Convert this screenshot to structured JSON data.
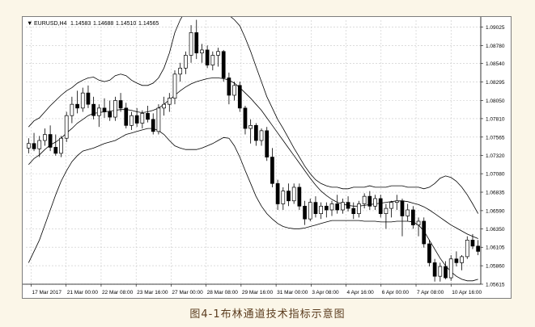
{
  "caption": "图4-1布林通道技术指标示意图",
  "chart_header": {
    "menu_glyph": "▼",
    "symbol": "EURUSD,H4",
    "open": "1.14583",
    "high": "1.14688",
    "low": "1.14510",
    "close": "1.14565"
  },
  "colors": {
    "background": "#ffffff",
    "grid": "#c8c8c8",
    "candle": "#000000",
    "band": "#000000"
  },
  "chart_data": {
    "type": "candlestick",
    "indicator": "Bollinger Bands",
    "grid": true,
    "ylim": [
      1.05615,
      1.09115
    ],
    "y_ticks": [
      "1.09025",
      "1.08780",
      "1.08540",
      "1.08295",
      "1.08050",
      "1.07810",
      "1.07565",
      "1.07320",
      "1.07080",
      "1.06835",
      "1.06590",
      "1.06350",
      "1.06105",
      "1.05860",
      "1.05615"
    ],
    "x_ticks": [
      "17 Mar 2017",
      "21 Mar 00:00",
      "22 Mar 08:00",
      "23 Mar 16:00",
      "27 Mar 00:00",
      "28 Mar 08:00",
      "29 Mar 16:00",
      "31 Mar 00:00",
      "3 Apr 08:00",
      "4 Apr 16:00",
      "6 Apr 00:00",
      "7 Apr 08:00",
      "10 Apr 16:00"
    ],
    "candles": [
      [
        1.0742,
        1.0755,
        1.0735,
        1.0748
      ],
      [
        1.0748,
        1.0762,
        1.0738,
        1.0741
      ],
      [
        1.0741,
        1.0758,
        1.073,
        1.0752
      ],
      [
        1.0752,
        1.0768,
        1.0745,
        1.076
      ],
      [
        1.076,
        1.0772,
        1.0738,
        1.0743
      ],
      [
        1.0743,
        1.076,
        1.0732,
        1.0735
      ],
      [
        1.0735,
        1.0758,
        1.073,
        1.0755
      ],
      [
        1.0755,
        1.079,
        1.075,
        1.0785
      ],
      [
        1.0785,
        1.081,
        1.0775,
        1.08
      ],
      [
        1.08,
        1.0818,
        1.0788,
        1.0795
      ],
      [
        1.0795,
        1.0822,
        1.079,
        1.0815
      ],
      [
        1.0815,
        1.0825,
        1.0795,
        1.08
      ],
      [
        1.08,
        1.081,
        1.078,
        1.0785
      ],
      [
        1.0785,
        1.08,
        1.077,
        1.0795
      ],
      [
        1.0795,
        1.0808,
        1.0782,
        1.079
      ],
      [
        1.079,
        1.0805,
        1.0778,
        1.0783
      ],
      [
        1.0783,
        1.081,
        1.0778,
        1.0805
      ],
      [
        1.0805,
        1.0815,
        1.079,
        1.0795
      ],
      [
        1.0795,
        1.0802,
        1.0768,
        1.0772
      ],
      [
        1.0772,
        1.079,
        1.0766,
        1.0785
      ],
      [
        1.0785,
        1.0795,
        1.077,
        1.0775
      ],
      [
        1.0775,
        1.0792,
        1.0768,
        1.0788
      ],
      [
        1.0788,
        1.0798,
        1.0776,
        1.078
      ],
      [
        1.078,
        1.0788,
        1.076,
        1.0764
      ],
      [
        1.0764,
        1.08,
        1.076,
        1.0795
      ],
      [
        1.0795,
        1.081,
        1.0785,
        1.08
      ],
      [
        1.08,
        1.0815,
        1.079,
        1.0808
      ],
      [
        1.0808,
        1.0845,
        1.08,
        1.084
      ],
      [
        1.084,
        1.0855,
        1.083,
        1.0848
      ],
      [
        1.0848,
        1.087,
        1.084,
        1.0865
      ],
      [
        1.0865,
        1.0905,
        1.0855,
        1.0895
      ],
      [
        1.0895,
        1.0912,
        1.086,
        1.0868
      ],
      [
        1.0868,
        1.088,
        1.0855,
        1.0872
      ],
      [
        1.0872,
        1.0878,
        1.0848,
        1.0852
      ],
      [
        1.0852,
        1.087,
        1.0845,
        1.0865
      ],
      [
        1.0865,
        1.0875,
        1.085,
        1.087
      ],
      [
        1.087,
        1.0872,
        1.083,
        1.0835
      ],
      [
        1.0835,
        1.0842,
        1.08,
        1.0812
      ],
      [
        1.0812,
        1.083,
        1.0805,
        1.0825
      ],
      [
        1.0825,
        1.083,
        1.079,
        1.0795
      ],
      [
        1.0795,
        1.0798,
        1.076,
        1.0768
      ],
      [
        1.0768,
        1.078,
        1.0748,
        1.0772
      ],
      [
        1.0772,
        1.0775,
        1.0745,
        1.0752
      ],
      [
        1.0752,
        1.0768,
        1.0745,
        1.0765
      ],
      [
        1.0765,
        1.077,
        1.0725,
        1.073
      ],
      [
        1.073,
        1.0742,
        1.069,
        1.0695
      ],
      [
        1.0695,
        1.07,
        1.066,
        1.0668
      ],
      [
        1.0668,
        1.069,
        1.066,
        1.0685
      ],
      [
        1.0685,
        1.0695,
        1.0665,
        1.0672
      ],
      [
        1.0672,
        1.0695,
        1.0668,
        1.069
      ],
      [
        1.069,
        1.0695,
        1.066,
        1.0665
      ],
      [
        1.0665,
        1.0672,
        1.064,
        1.0648
      ],
      [
        1.0648,
        1.0675,
        1.0645,
        1.067
      ],
      [
        1.067,
        1.0678,
        1.065,
        1.0655
      ],
      [
        1.0655,
        1.067,
        1.0648,
        1.0665
      ],
      [
        1.0665,
        1.067,
        1.065,
        1.066
      ],
      [
        1.066,
        1.0672,
        1.0652,
        1.0668
      ],
      [
        1.0668,
        1.068,
        1.0655,
        1.066
      ],
      [
        1.066,
        1.0675,
        1.0655,
        1.067
      ],
      [
        1.067,
        1.0678,
        1.0658,
        1.0662
      ],
      [
        1.0662,
        1.067,
        1.0648,
        1.0655
      ],
      [
        1.0655,
        1.0672,
        1.065,
        1.0668
      ],
      [
        1.0668,
        1.0682,
        1.0662,
        1.0678
      ],
      [
        1.0678,
        1.0685,
        1.066,
        1.0665
      ],
      [
        1.0665,
        1.068,
        1.066,
        1.0675
      ],
      [
        1.0675,
        1.068,
        1.065,
        1.0655
      ],
      [
        1.0655,
        1.0668,
        1.0635,
        1.0662
      ],
      [
        1.0662,
        1.0672,
        1.065,
        1.067
      ],
      [
        1.067,
        1.068,
        1.066,
        1.0672
      ],
      [
        1.0672,
        1.0675,
        1.0625,
        1.0652
      ],
      [
        1.0652,
        1.0668,
        1.0645,
        1.066
      ],
      [
        1.066,
        1.0665,
        1.0635,
        1.064
      ],
      [
        1.064,
        1.065,
        1.0625,
        1.0645
      ],
      [
        1.0645,
        1.065,
        1.061,
        1.0615
      ],
      [
        1.0615,
        1.062,
        1.0585,
        1.059
      ],
      [
        1.059,
        1.0595,
        1.0565,
        1.0572
      ],
      [
        1.0572,
        1.059,
        1.0565,
        1.0585
      ],
      [
        1.0585,
        1.0592,
        1.0568,
        1.057
      ],
      [
        1.057,
        1.06,
        1.0566,
        1.0595
      ],
      [
        1.0595,
        1.0605,
        1.0585,
        1.059
      ],
      [
        1.059,
        1.06,
        1.058,
        1.0598
      ],
      [
        1.0598,
        1.0625,
        1.0595,
        1.062
      ],
      [
        1.062,
        1.0628,
        1.0608,
        1.0612
      ],
      [
        1.0612,
        1.062,
        1.06,
        1.0605
      ]
    ],
    "bollinger": {
      "upper": [
        1.077,
        1.0778,
        1.0782,
        1.079,
        1.0798,
        1.0805,
        1.0812,
        1.0818,
        1.0822,
        1.0828,
        1.0832,
        1.0835,
        1.0836,
        1.0832,
        1.083,
        1.0832,
        1.0838,
        1.084,
        1.0838,
        1.0832,
        1.0828,
        1.0825,
        1.0825,
        1.0828,
        1.0835,
        1.0848,
        1.0868,
        1.0895,
        1.0912,
        1.0924,
        1.093,
        1.0932,
        1.093,
        1.0928,
        1.0926,
        1.0924,
        1.0922,
        1.0918,
        1.0912,
        1.0904,
        1.0888,
        1.087,
        1.085,
        1.083,
        1.081,
        1.0795,
        1.078,
        1.0768,
        1.0755,
        1.0742,
        1.073,
        1.0718,
        1.0708,
        1.07,
        1.0695,
        1.0692,
        1.069,
        1.069,
        1.0688,
        1.0688,
        1.069,
        1.069,
        1.069,
        1.0692,
        1.069,
        1.069,
        1.069,
        1.0692,
        1.0692,
        1.0692,
        1.069,
        1.069,
        1.069,
        1.0688,
        1.069,
        1.0695,
        1.0702,
        1.0705,
        1.0703,
        1.0698,
        1.069,
        1.068,
        1.0668,
        1.0655
      ],
      "middle": [
        1.072,
        1.0728,
        1.0733,
        1.074,
        1.0746,
        1.075,
        1.0755,
        1.0762,
        1.0768,
        1.0775,
        1.078,
        1.0785,
        1.0788,
        1.0789,
        1.079,
        1.0791,
        1.0792,
        1.0793,
        1.0793,
        1.0792,
        1.079,
        1.0789,
        1.079,
        1.0792,
        1.0795,
        1.08,
        1.0806,
        1.0812,
        1.0818,
        1.0823,
        1.0827,
        1.083,
        1.0832,
        1.0834,
        1.0835,
        1.0835,
        1.0834,
        1.0832,
        1.0828,
        1.0822,
        1.0815,
        1.0808,
        1.08,
        1.0792,
        1.0782,
        1.0772,
        1.0762,
        1.0752,
        1.0742,
        1.0732,
        1.0722,
        1.0712,
        1.0702,
        1.0693,
        1.0685,
        1.0679,
        1.0674,
        1.067,
        1.0668,
        1.0666,
        1.0665,
        1.0665,
        1.0666,
        1.0667,
        1.0668,
        1.0669,
        1.067,
        1.0671,
        1.0672,
        1.0672,
        1.0671,
        1.0669,
        1.0667,
        1.0664,
        1.066,
        1.0655,
        1.065,
        1.0645,
        1.064,
        1.0636,
        1.0632,
        1.0628,
        1.0625,
        1.0622
      ],
      "lower": [
        1.059,
        1.0605,
        1.062,
        1.064,
        1.066,
        1.068,
        1.0698,
        1.0712,
        1.0724,
        1.0732,
        1.0738,
        1.074,
        1.0742,
        1.0745,
        1.0748,
        1.075,
        1.0752,
        1.0756,
        1.076,
        1.0762,
        1.0764,
        1.0766,
        1.0768,
        1.0768,
        1.0765,
        1.076,
        1.0752,
        1.0745,
        1.0742,
        1.074,
        1.074,
        1.074,
        1.0742,
        1.0745,
        1.0748,
        1.0752,
        1.0756,
        1.0755,
        1.0745,
        1.073,
        1.0712,
        1.0695,
        1.0678,
        1.0665,
        1.0655,
        1.0648,
        1.0642,
        1.0638,
        1.0636,
        1.0635,
        1.0635,
        1.0636,
        1.0638,
        1.064,
        1.0642,
        1.0644,
        1.0646,
        1.0646,
        1.0646,
        1.0646,
        1.0646,
        1.0646,
        1.0645,
        1.0645,
        1.0645,
        1.0644,
        1.0644,
        1.0644,
        1.0645,
        1.0645,
        1.0645,
        1.0644,
        1.064,
        1.0632,
        1.062,
        1.0608,
        1.0596,
        1.0586,
        1.0578,
        1.0572,
        1.0568,
        1.0566,
        1.0566,
        1.0568
      ]
    }
  }
}
